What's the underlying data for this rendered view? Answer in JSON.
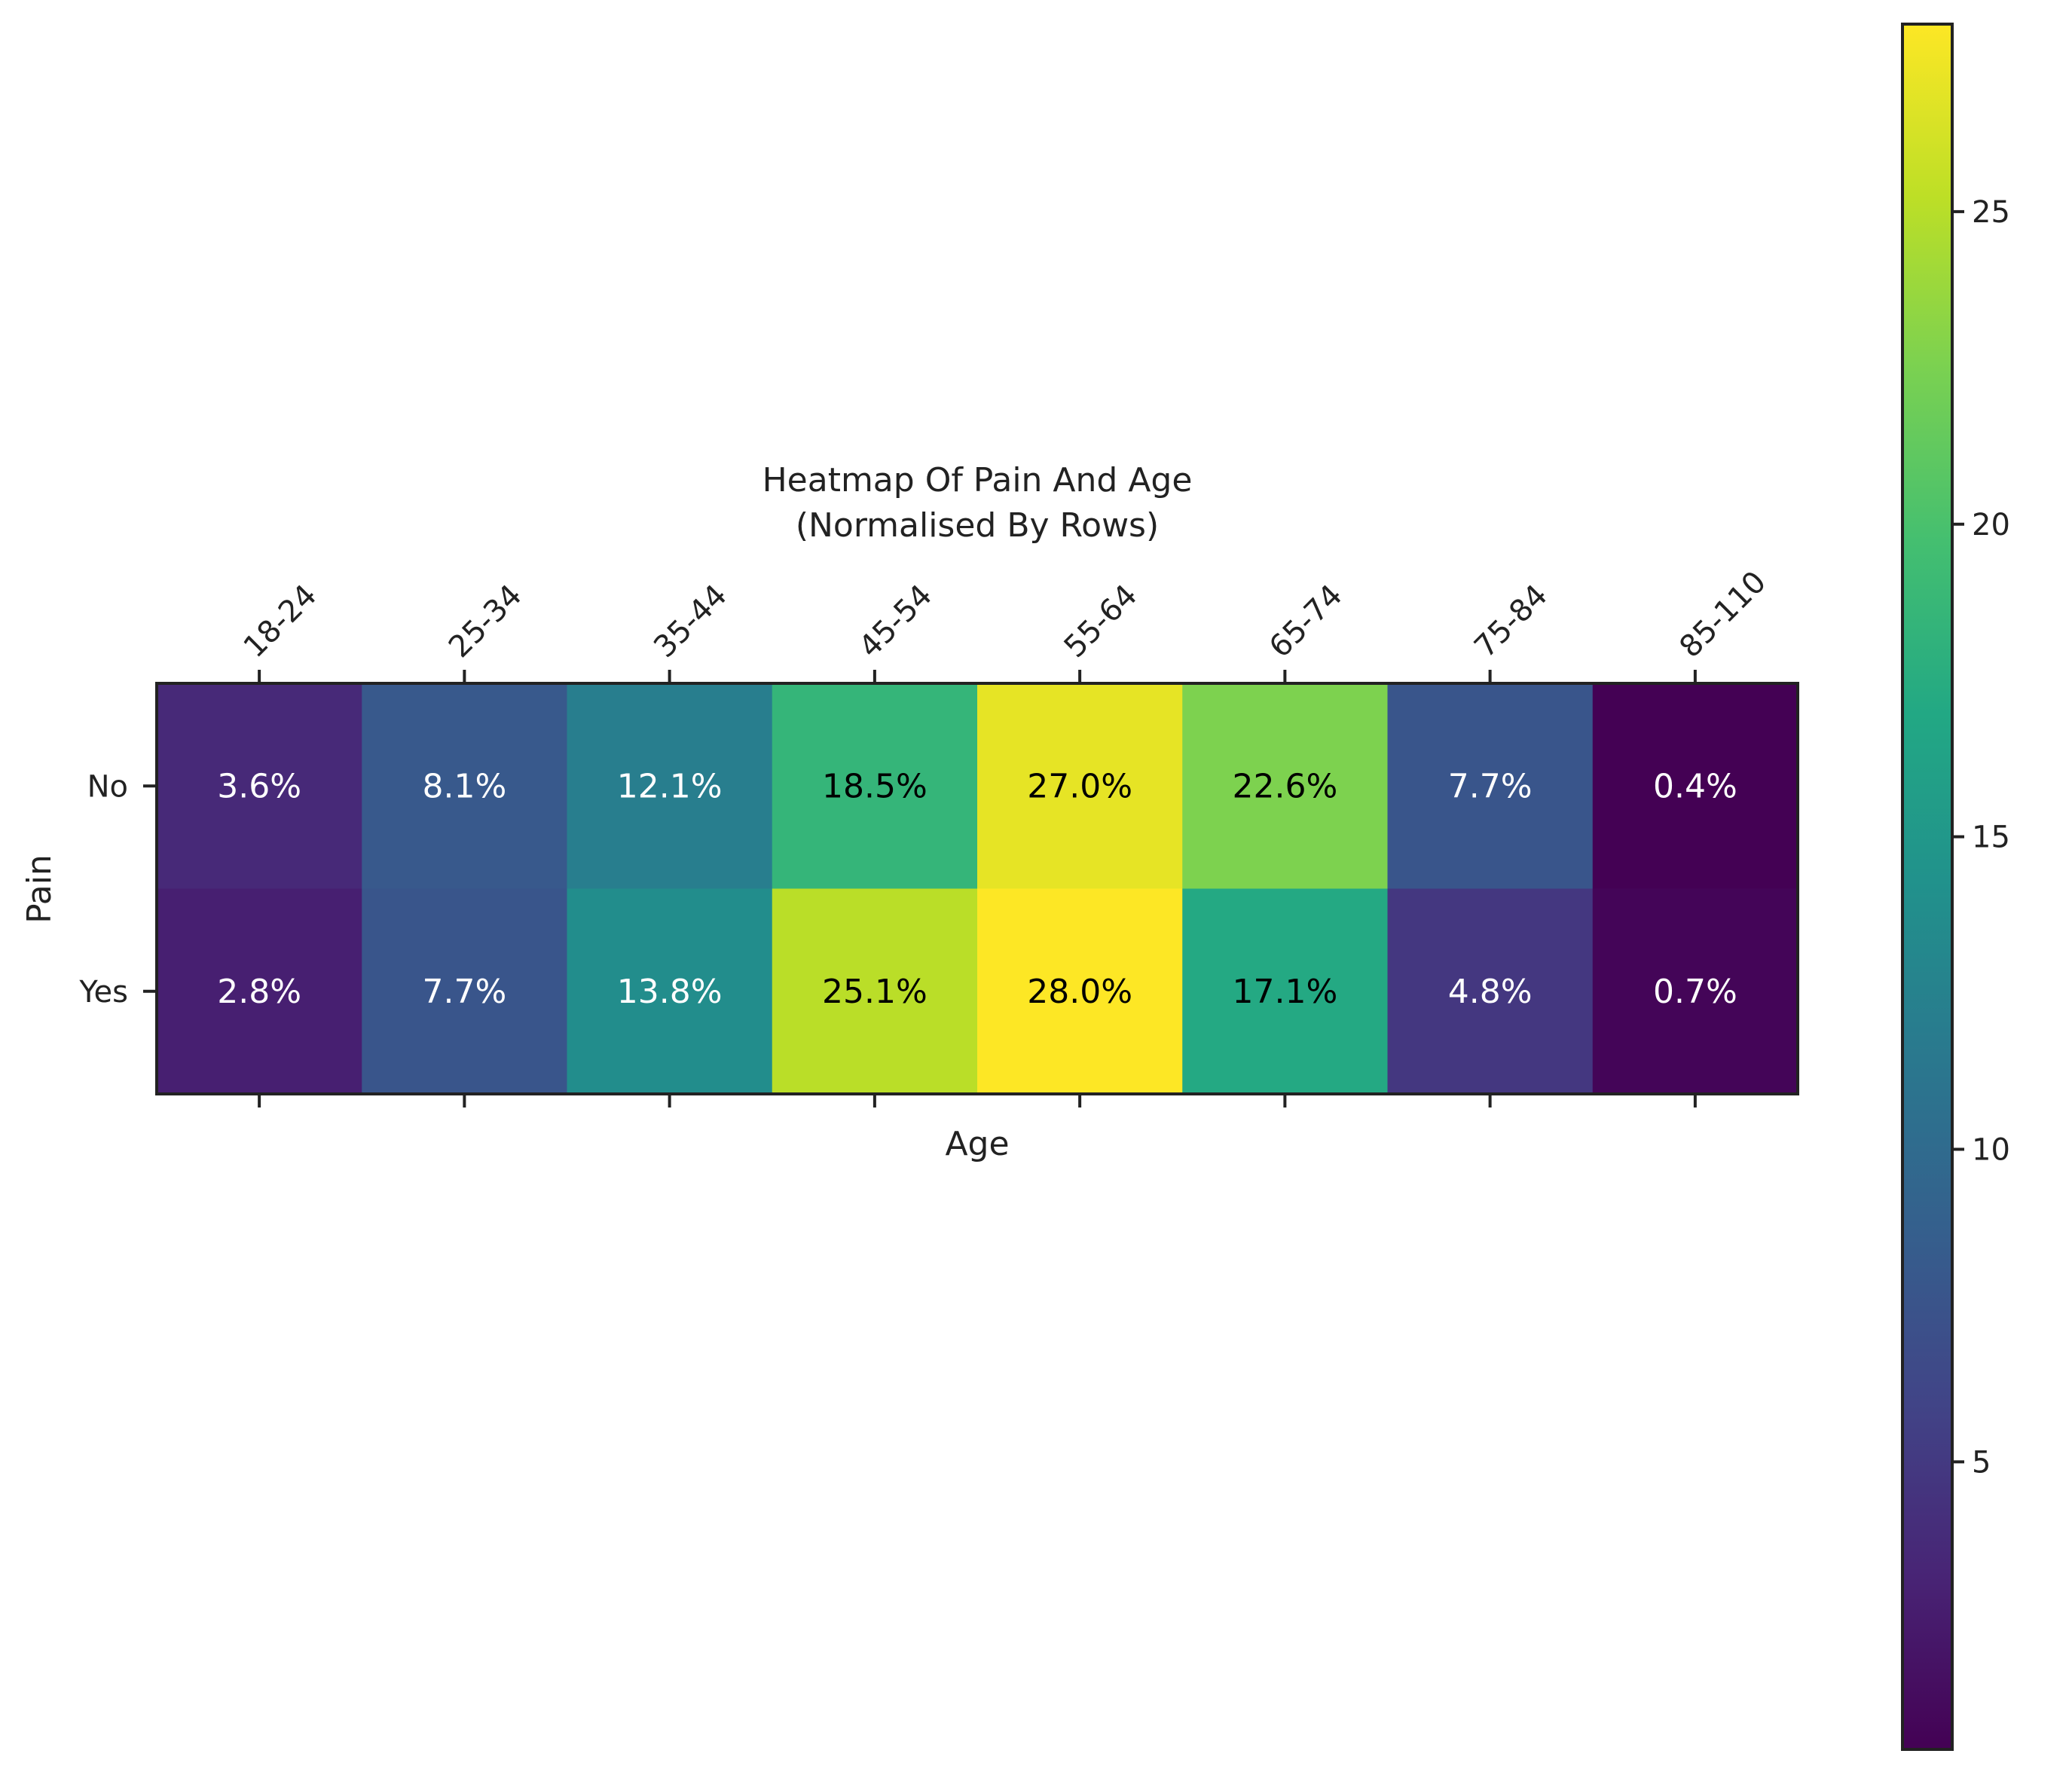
{
  "chart_data": {
    "type": "heatmap",
    "title": "Heatmap Of Pain And Age",
    "subtitle": "(Normalised By Rows)",
    "xlabel": "Age",
    "ylabel": "Pain",
    "x_categories": [
      "18-24",
      "25-34",
      "35-44",
      "45-54",
      "55-64",
      "65-74",
      "75-84",
      "85-110"
    ],
    "y_categories": [
      "No",
      "Yes"
    ],
    "values": [
      [
        3.6,
        8.1,
        12.1,
        18.5,
        27.0,
        22.6,
        7.7,
        0.4
      ],
      [
        2.8,
        7.7,
        13.8,
        25.1,
        28.0,
        17.1,
        4.8,
        0.7
      ]
    ],
    "cell_labels": [
      [
        "3.6%",
        "8.1%",
        "12.1%",
        "18.5%",
        "27.0%",
        "22.6%",
        "7.7%",
        "0.4%"
      ],
      [
        "2.8%",
        "7.7%",
        "13.8%",
        "25.1%",
        "28.0%",
        "17.1%",
        "4.8%",
        "0.7%"
      ]
    ],
    "colormap": "viridis",
    "color_range": [
      0.4,
      28.0
    ],
    "colorbar_ticks": [
      5,
      10,
      15,
      20,
      25
    ],
    "colorbar_tick_labels": [
      "5",
      "10",
      "15",
      "20",
      "25"
    ],
    "x_tick_position": "top",
    "x_tick_rotation": 45,
    "grid": false
  }
}
